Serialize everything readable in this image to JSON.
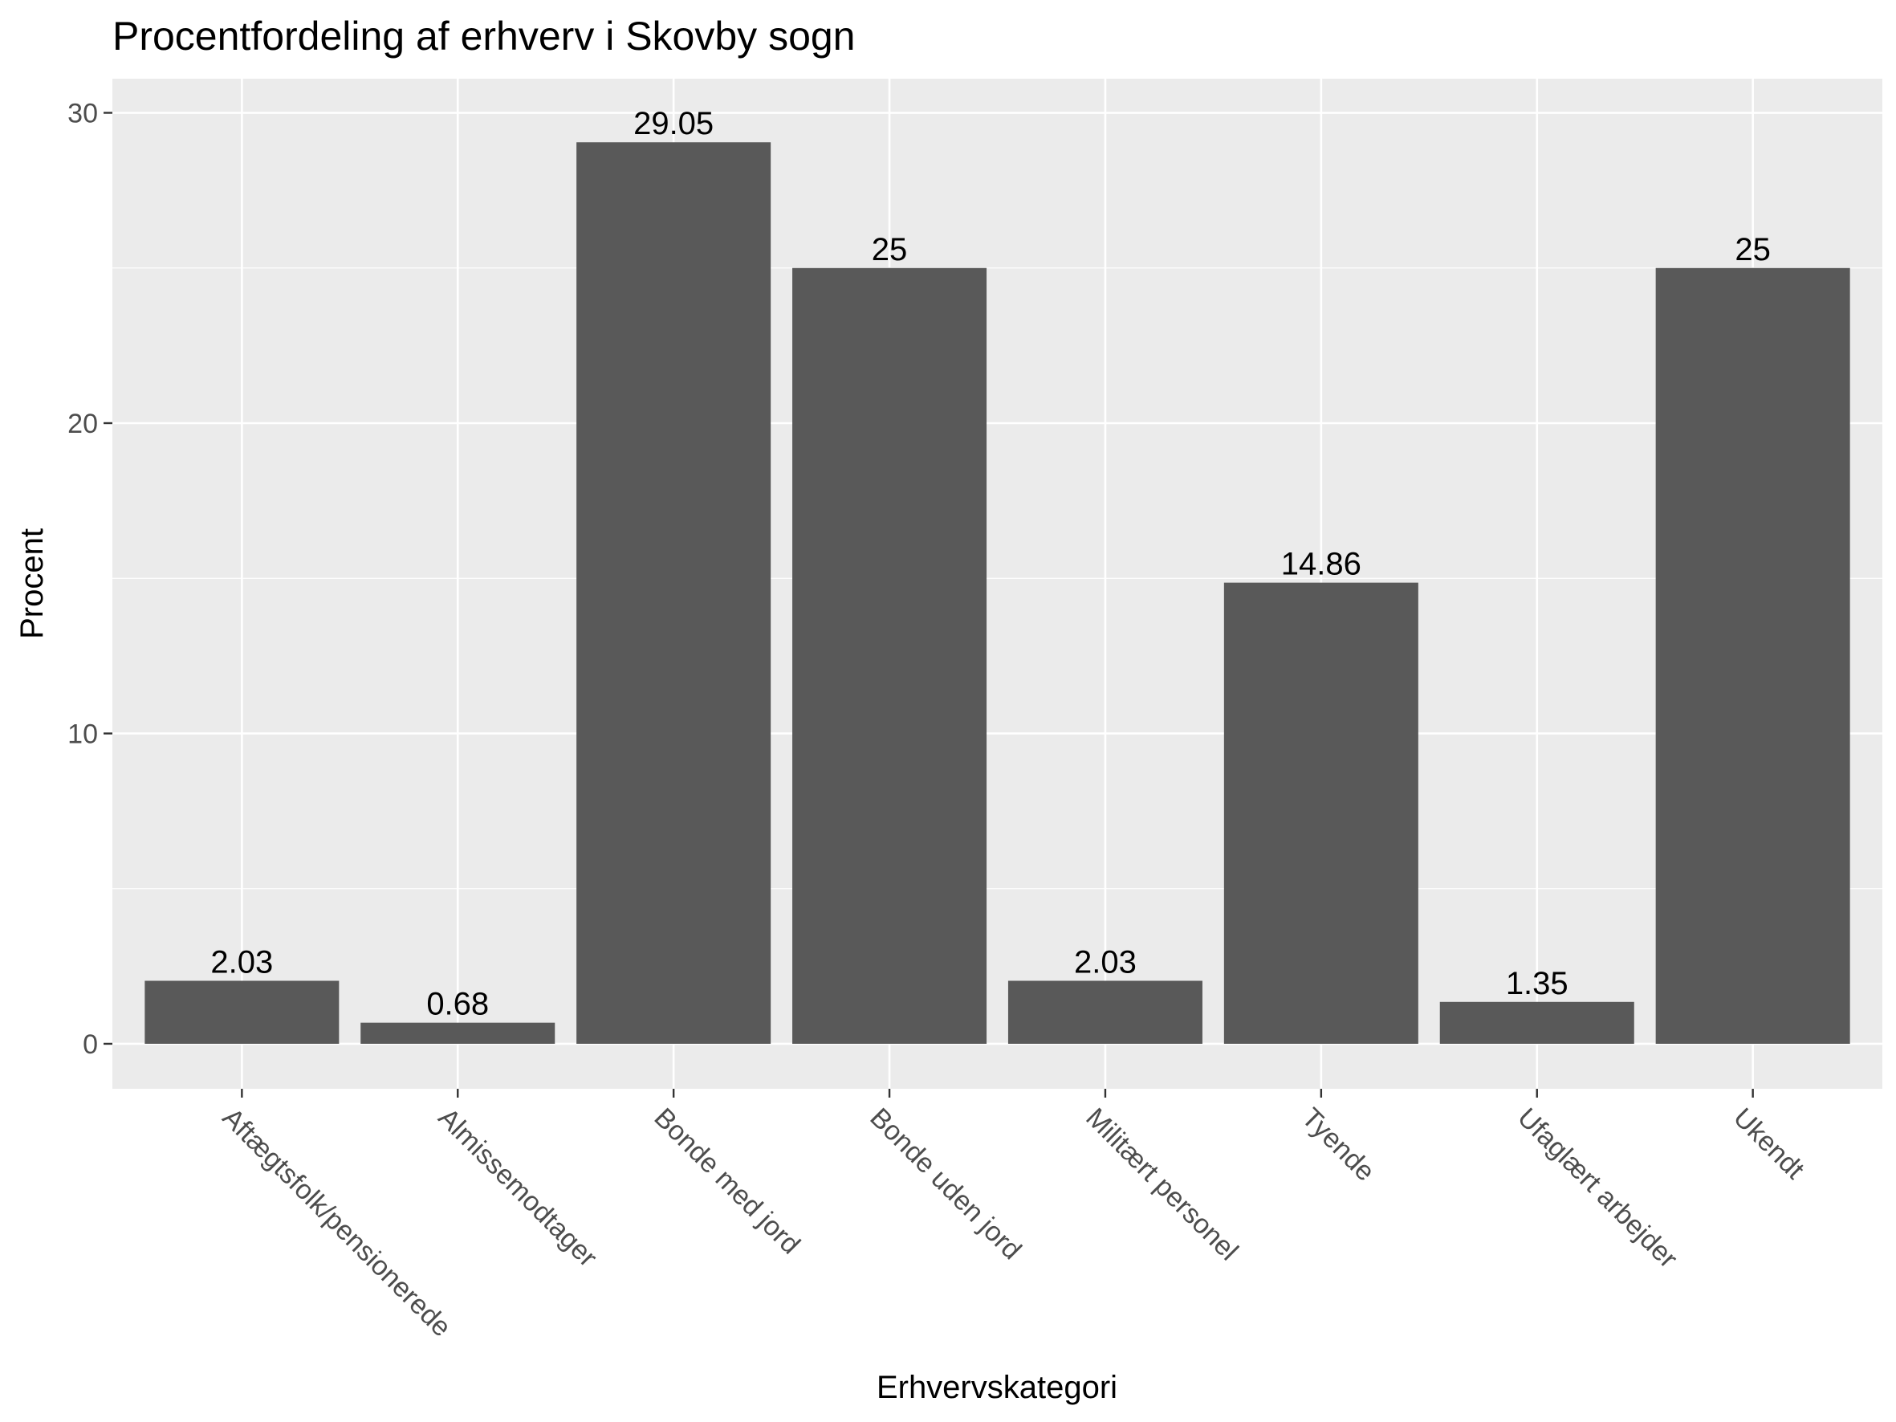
{
  "chart_data": {
    "type": "bar",
    "title": "Procentfordeling af erhverv i Skovby sogn",
    "xlabel": "Erhvervskategori",
    "ylabel": "Procent",
    "categories": [
      "Aftægtsfolk/pensionerede",
      "Almissemodtager",
      "Bonde med jord",
      "Bonde uden jord",
      "Militært personel",
      "Tyende",
      "Ufaglært arbejder",
      "Ukendt"
    ],
    "values": [
      2.03,
      0.68,
      29.05,
      25,
      2.03,
      14.86,
      1.35,
      25
    ],
    "value_labels": [
      "2.03",
      "0.68",
      "29.05",
      "25",
      "2.03",
      "14.86",
      "1.35",
      "25"
    ],
    "ylim": [
      -1.45,
      31.1
    ],
    "yticks": [
      0,
      10,
      20,
      30
    ],
    "ytick_labels": [
      "0",
      "10",
      "20",
      "30"
    ],
    "grid": true,
    "legend": "none"
  },
  "colors": {
    "panel": "#ebebeb",
    "grid": "#ffffff",
    "bar": "#595959",
    "tick": "#333333"
  }
}
